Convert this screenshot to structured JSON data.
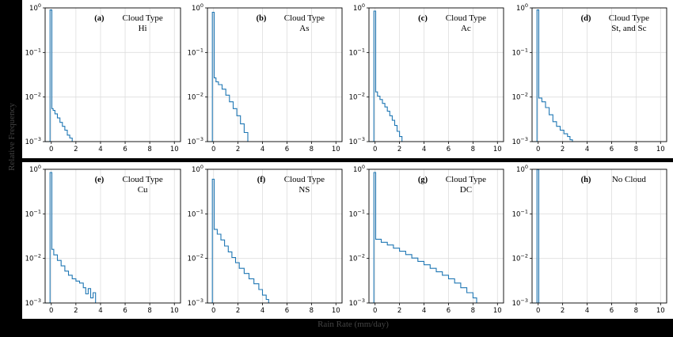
{
  "figure": {
    "ylabel": "Relative Frequency",
    "xlabel": "Rain Rate (mm/day)",
    "background_color": "#000000",
    "panel_color": "#ffffff",
    "line_color": "#1f77b4",
    "grid_color": "#dddddd"
  },
  "chart_data": [
    {
      "type": "line",
      "step": true,
      "ylog": true,
      "grid": true,
      "panel_label": "(a)",
      "annotation_lines": [
        "Cloud Type",
        "Hi"
      ],
      "xlim": [
        -0.5,
        10.5
      ],
      "ylim": [
        0.001,
        1
      ],
      "xticks": [
        0,
        2,
        4,
        6,
        8,
        10
      ],
      "yticks": [
        {
          "v": 0.001,
          "label": "10",
          "exp": "−3"
        },
        {
          "v": 0.01,
          "label": "10",
          "exp": "−2"
        },
        {
          "v": 0.1,
          "label": "10",
          "exp": "−1"
        },
        {
          "v": 1,
          "label": "10",
          "exp": "0"
        }
      ],
      "series": [
        {
          "x": [
            -0.5,
            -0.1,
            -0.1,
            0.05,
            0.05,
            0.15,
            0.3,
            0.5,
            0.7,
            0.9,
            1.1,
            1.3,
            1.5,
            1.7
          ],
          "y": [
            0.001,
            0.001,
            0.9,
            0.9,
            0.0055,
            0.005,
            0.0042,
            0.0034,
            0.0027,
            0.0022,
            0.0018,
            0.0014,
            0.0012,
            0.001
          ]
        }
      ]
    },
    {
      "type": "line",
      "step": true,
      "ylog": true,
      "grid": true,
      "panel_label": "(b)",
      "annotation_lines": [
        "Cloud Type",
        "As"
      ],
      "xlim": [
        -0.5,
        10.5
      ],
      "ylim": [
        0.001,
        1
      ],
      "xticks": [
        0,
        2,
        4,
        6,
        8,
        10
      ],
      "yticks": [
        {
          "v": 0.001,
          "label": "10",
          "exp": "−3"
        },
        {
          "v": 0.01,
          "label": "10",
          "exp": "−2"
        },
        {
          "v": 0.1,
          "label": "10",
          "exp": "−1"
        },
        {
          "v": 1,
          "label": "10",
          "exp": "0"
        }
      ],
      "series": [
        {
          "x": [
            -0.5,
            -0.1,
            -0.1,
            0.05,
            0.05,
            0.2,
            0.4,
            0.7,
            1.0,
            1.3,
            1.6,
            1.9,
            2.2,
            2.5,
            2.8
          ],
          "y": [
            0.001,
            0.001,
            0.8,
            0.8,
            0.027,
            0.022,
            0.019,
            0.015,
            0.011,
            0.0078,
            0.0055,
            0.0038,
            0.0025,
            0.0016,
            0.001
          ]
        }
      ]
    },
    {
      "type": "line",
      "step": true,
      "ylog": true,
      "grid": true,
      "panel_label": "(c)",
      "annotation_lines": [
        "Cloud Type",
        "Ac"
      ],
      "xlim": [
        -0.5,
        10.5
      ],
      "ylim": [
        0.001,
        1
      ],
      "xticks": [
        0,
        2,
        4,
        6,
        8,
        10
      ],
      "yticks": [
        {
          "v": 0.001,
          "label": "10",
          "exp": "−3"
        },
        {
          "v": 0.01,
          "label": "10",
          "exp": "−2"
        },
        {
          "v": 0.1,
          "label": "10",
          "exp": "−1"
        },
        {
          "v": 1,
          "label": "10",
          "exp": "0"
        }
      ],
      "series": [
        {
          "x": [
            -0.5,
            -0.1,
            -0.1,
            0.05,
            0.05,
            0.2,
            0.4,
            0.6,
            0.8,
            1.0,
            1.2,
            1.4,
            1.6,
            1.8,
            2.0,
            2.2
          ],
          "y": [
            0.001,
            0.001,
            0.85,
            0.85,
            0.013,
            0.0105,
            0.0088,
            0.0072,
            0.006,
            0.0048,
            0.0038,
            0.003,
            0.0023,
            0.0017,
            0.0013,
            0.001
          ]
        }
      ]
    },
    {
      "type": "line",
      "step": true,
      "ylog": true,
      "grid": true,
      "panel_label": "(d)",
      "annotation_lines": [
        "Cloud Type",
        "St, and Sc"
      ],
      "xlim": [
        -0.5,
        10.5
      ],
      "ylim": [
        0.001,
        1
      ],
      "xticks": [
        0,
        2,
        4,
        6,
        8,
        10
      ],
      "yticks": [
        {
          "v": 0.001,
          "label": "10",
          "exp": "−3"
        },
        {
          "v": 0.01,
          "label": "10",
          "exp": "−2"
        },
        {
          "v": 0.1,
          "label": "10",
          "exp": "−1"
        },
        {
          "v": 1,
          "label": "10",
          "exp": "0"
        }
      ],
      "series": [
        {
          "x": [
            -0.5,
            -0.1,
            -0.1,
            0.05,
            0.05,
            0.3,
            0.6,
            0.9,
            1.2,
            1.5,
            1.8,
            2.1,
            2.4,
            2.6,
            2.8
          ],
          "y": [
            0.001,
            0.001,
            0.9,
            0.9,
            0.0095,
            0.0078,
            0.0058,
            0.004,
            0.0028,
            0.0022,
            0.0018,
            0.0015,
            0.0013,
            0.0011,
            0.001
          ]
        }
      ]
    },
    {
      "type": "line",
      "step": true,
      "ylog": true,
      "grid": true,
      "panel_label": "(e)",
      "annotation_lines": [
        "Cloud Type",
        "Cu"
      ],
      "xlim": [
        -0.5,
        10.5
      ],
      "ylim": [
        0.001,
        1
      ],
      "xticks": [
        0,
        2,
        4,
        6,
        8,
        10
      ],
      "yticks": [
        {
          "v": 0.001,
          "label": "10",
          "exp": "−3"
        },
        {
          "v": 0.01,
          "label": "10",
          "exp": "−2"
        },
        {
          "v": 0.1,
          "label": "10",
          "exp": "−1"
        },
        {
          "v": 1,
          "label": "10",
          "exp": "0"
        }
      ],
      "series": [
        {
          "x": [
            -0.5,
            -0.1,
            -0.1,
            0.05,
            0.05,
            0.2,
            0.5,
            0.8,
            1.1,
            1.4,
            1.7,
            2.0,
            2.3,
            2.6,
            2.8,
            3.0,
            3.2,
            3.4,
            3.6
          ],
          "y": [
            0.001,
            0.001,
            0.85,
            0.85,
            0.016,
            0.012,
            0.009,
            0.0068,
            0.0052,
            0.0042,
            0.0035,
            0.0031,
            0.0028,
            0.0022,
            0.0016,
            0.0021,
            0.0013,
            0.0017,
            0.001
          ]
        }
      ]
    },
    {
      "type": "line",
      "step": true,
      "ylog": true,
      "grid": true,
      "panel_label": "(f)",
      "annotation_lines": [
        "Cloud Type",
        "NS"
      ],
      "xlim": [
        -0.5,
        10.5
      ],
      "ylim": [
        0.001,
        1
      ],
      "xticks": [
        0,
        2,
        4,
        6,
        8,
        10
      ],
      "yticks": [
        {
          "v": 0.001,
          "label": "10",
          "exp": "−3"
        },
        {
          "v": 0.01,
          "label": "10",
          "exp": "−2"
        },
        {
          "v": 0.1,
          "label": "10",
          "exp": "−1"
        },
        {
          "v": 1,
          "label": "10",
          "exp": "0"
        }
      ],
      "series": [
        {
          "x": [
            -0.5,
            -0.1,
            -0.1,
            0.05,
            0.05,
            0.3,
            0.6,
            0.9,
            1.2,
            1.5,
            1.8,
            2.1,
            2.5,
            2.9,
            3.3,
            3.7,
            4.0,
            4.3,
            4.5
          ],
          "y": [
            0.001,
            0.001,
            0.6,
            0.6,
            0.045,
            0.035,
            0.026,
            0.019,
            0.014,
            0.0105,
            0.008,
            0.006,
            0.0046,
            0.0035,
            0.0027,
            0.002,
            0.0015,
            0.0012,
            0.001
          ]
        }
      ]
    },
    {
      "type": "line",
      "step": true,
      "ylog": true,
      "grid": true,
      "panel_label": "(g)",
      "annotation_lines": [
        "Cloud Type",
        "DC"
      ],
      "xlim": [
        -0.5,
        10.5
      ],
      "ylim": [
        0.001,
        1
      ],
      "xticks": [
        0,
        2,
        4,
        6,
        8,
        10
      ],
      "yticks": [
        {
          "v": 0.001,
          "label": "10",
          "exp": "−3"
        },
        {
          "v": 0.01,
          "label": "10",
          "exp": "−2"
        },
        {
          "v": 0.1,
          "label": "10",
          "exp": "−1"
        },
        {
          "v": 1,
          "label": "10",
          "exp": "0"
        }
      ],
      "series": [
        {
          "x": [
            -0.5,
            -0.1,
            -0.1,
            0.05,
            0.05,
            0.5,
            1.0,
            1.5,
            2.0,
            2.5,
            3.0,
            3.5,
            4.0,
            4.5,
            5.0,
            5.5,
            6.0,
            6.5,
            7.0,
            7.5,
            8.0,
            8.3
          ],
          "y": [
            0.001,
            0.001,
            0.85,
            0.85,
            0.027,
            0.023,
            0.02,
            0.017,
            0.0145,
            0.0122,
            0.0102,
            0.0086,
            0.0072,
            0.006,
            0.005,
            0.0042,
            0.0035,
            0.0028,
            0.0022,
            0.0017,
            0.0013,
            0.001
          ]
        }
      ]
    },
    {
      "type": "line",
      "step": true,
      "ylog": true,
      "grid": true,
      "panel_label": "(h)",
      "annotation_lines": [
        "No Cloud"
      ],
      "xlim": [
        -0.5,
        10.5
      ],
      "ylim": [
        0.001,
        1
      ],
      "xticks": [
        0,
        2,
        4,
        6,
        8,
        10
      ],
      "yticks": [
        {
          "v": 0.001,
          "label": "10",
          "exp": "−3"
        },
        {
          "v": 0.01,
          "label": "10",
          "exp": "−2"
        },
        {
          "v": 0.1,
          "label": "10",
          "exp": "−1"
        },
        {
          "v": 1,
          "label": "10",
          "exp": "0"
        }
      ],
      "series": [
        {
          "x": [
            -0.5,
            -0.1,
            -0.1,
            0.05,
            0.05,
            0.2
          ],
          "y": [
            0.001,
            0.001,
            0.99,
            0.99,
            0.001,
            0.001
          ]
        }
      ]
    }
  ]
}
